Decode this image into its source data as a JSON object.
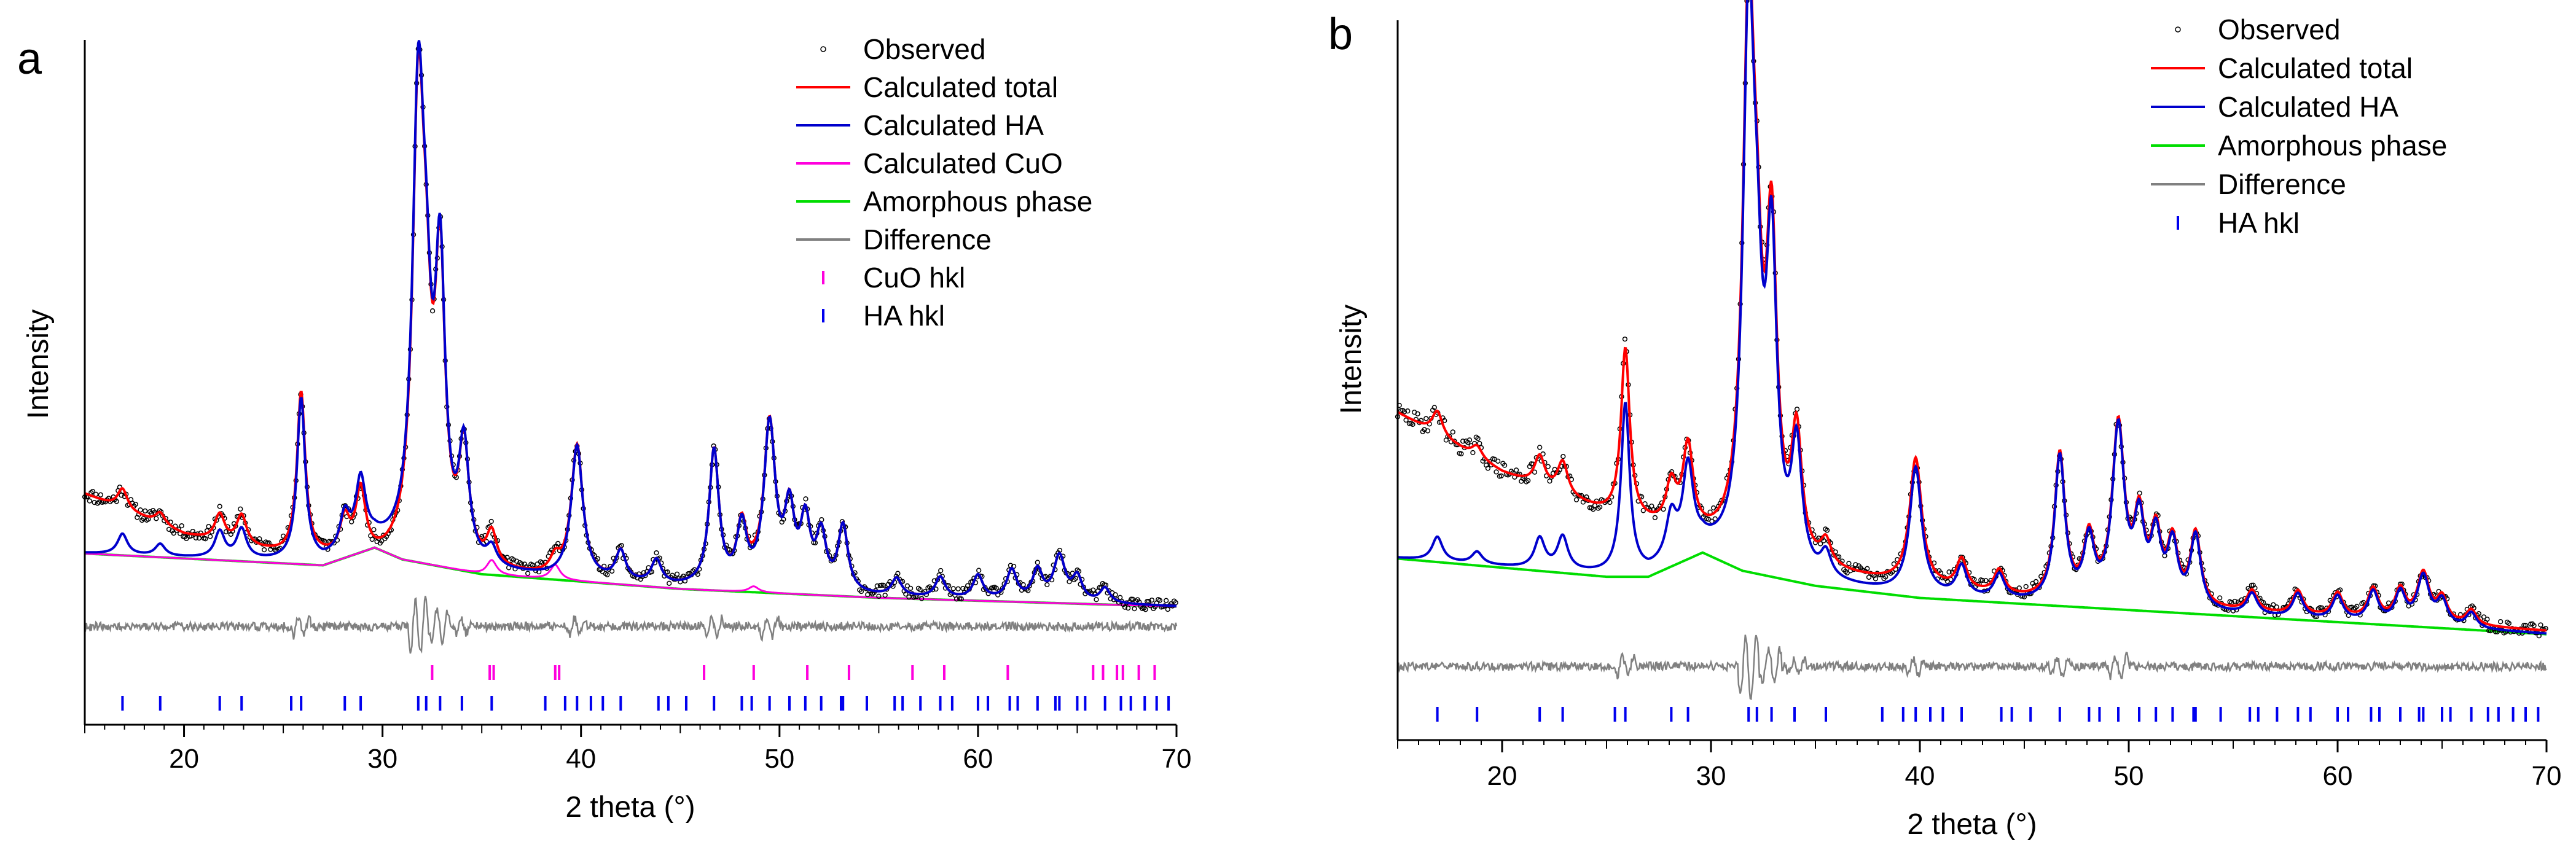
{
  "colors": {
    "observed": "#000000",
    "calculated_total": "#ff0000",
    "calculated_ha": "#0000cc",
    "calculated_cuo": "#ff00dd",
    "amorphous": "#00dd00",
    "difference": "#808080",
    "cuo_hkl": "#ff00dd",
    "ha_hkl": "#0000ee"
  },
  "chart_data": [
    {
      "type": "line",
      "panel_label": "a",
      "title": "",
      "xlabel": "2 theta (°)",
      "ylabel": "Intensity",
      "xlim": [
        15,
        70
      ],
      "ylim": [
        -0.32,
        2.0
      ],
      "xticks": [
        20,
        30,
        40,
        50,
        60,
        70
      ],
      "grid": false,
      "legend": {
        "position": "top-right",
        "entries": [
          {
            "label": "Observed",
            "series": "observed",
            "symbol": "circle"
          },
          {
            "label": "Calculated total",
            "series": "calculated_total",
            "symbol": "line"
          },
          {
            "label": "Calculated HA",
            "series": "calculated_ha",
            "symbol": "line"
          },
          {
            "label": "Calculated CuO",
            "series": "calculated_cuo",
            "symbol": "line"
          },
          {
            "label": "Amorphous phase",
            "series": "amorphous",
            "symbol": "line"
          },
          {
            "label": "Difference",
            "series": "difference",
            "symbol": "line"
          },
          {
            "label": "CuO hkl",
            "series": "cuo_hkl",
            "symbol": "tick"
          },
          {
            "label": "HA hkl",
            "series": "ha_hkl",
            "symbol": "tick"
          }
        ]
      },
      "amorphous": {
        "points": [
          [
            15,
            0.26
          ],
          [
            27,
            0.22
          ],
          [
            29.6,
            0.28
          ],
          [
            31,
            0.24
          ],
          [
            35,
            0.19
          ],
          [
            45,
            0.14
          ],
          [
            55,
            0.11
          ],
          [
            70,
            0.08
          ]
        ]
      },
      "background": {
        "points": [
          [
            15,
            0.46
          ],
          [
            20,
            0.32
          ],
          [
            25,
            0.25
          ],
          [
            30,
            0.22
          ],
          [
            35,
            0.19
          ],
          [
            45,
            0.14
          ],
          [
            55,
            0.11
          ],
          [
            70,
            0.08
          ]
        ]
      },
      "ha_peaks": [
        {
          "pos": 16.9,
          "h": 0.07,
          "w": 0.3
        },
        {
          "pos": 18.8,
          "h": 0.04,
          "w": 0.3
        },
        {
          "pos": 21.8,
          "h": 0.09,
          "w": 0.3
        },
        {
          "pos": 22.9,
          "h": 0.1,
          "w": 0.3
        },
        {
          "pos": 25.9,
          "h": 0.55,
          "w": 0.25
        },
        {
          "pos": 28.1,
          "h": 0.12,
          "w": 0.3
        },
        {
          "pos": 28.9,
          "h": 0.22,
          "w": 0.3
        },
        {
          "pos": 31.8,
          "h": 1.5,
          "w": 0.35
        },
        {
          "pos": 32.2,
          "h": 0.5,
          "w": 0.3
        },
        {
          "pos": 32.9,
          "h": 0.95,
          "w": 0.3
        },
        {
          "pos": 34.1,
          "h": 0.38,
          "w": 0.3
        },
        {
          "pos": 35.5,
          "h": 0.06,
          "w": 0.3
        },
        {
          "pos": 39.8,
          "h": 0.45,
          "w": 0.35
        },
        {
          "pos": 42.0,
          "h": 0.1,
          "w": 0.3
        },
        {
          "pos": 43.8,
          "h": 0.08,
          "w": 0.3
        },
        {
          "pos": 46.7,
          "h": 0.46,
          "w": 0.3
        },
        {
          "pos": 48.1,
          "h": 0.2,
          "w": 0.3
        },
        {
          "pos": 49.5,
          "h": 0.55,
          "w": 0.35
        },
        {
          "pos": 50.5,
          "h": 0.25,
          "w": 0.3
        },
        {
          "pos": 51.3,
          "h": 0.22,
          "w": 0.3
        },
        {
          "pos": 52.1,
          "h": 0.18,
          "w": 0.3
        },
        {
          "pos": 53.2,
          "h": 0.22,
          "w": 0.3
        },
        {
          "pos": 55.9,
          "h": 0.06,
          "w": 0.3
        },
        {
          "pos": 58.1,
          "h": 0.07,
          "w": 0.3
        },
        {
          "pos": 60.0,
          "h": 0.08,
          "w": 0.3
        },
        {
          "pos": 61.7,
          "h": 0.1,
          "w": 0.3
        },
        {
          "pos": 63.0,
          "h": 0.1,
          "w": 0.3
        },
        {
          "pos": 64.1,
          "h": 0.15,
          "w": 0.35
        },
        {
          "pos": 65.0,
          "h": 0.08,
          "w": 0.3
        },
        {
          "pos": 66.4,
          "h": 0.05,
          "w": 0.3
        }
      ],
      "cuo_peaks": [
        {
          "pos": 35.5,
          "h": 0.05,
          "w": 0.3
        },
        {
          "pos": 38.7,
          "h": 0.05,
          "w": 0.3
        },
        {
          "pos": 48.7,
          "h": 0.02,
          "w": 0.3
        }
      ],
      "cuo_hkl": [
        32.5,
        35.4,
        35.6,
        38.7,
        38.9,
        46.2,
        48.7,
        51.4,
        53.5,
        56.7,
        58.3,
        61.5,
        65.8,
        66.3,
        67.0,
        67.3,
        68.1,
        68.9
      ],
      "ha_hkl": [
        16.9,
        18.8,
        21.8,
        22.9,
        25.4,
        25.9,
        28.1,
        28.9,
        31.8,
        32.2,
        32.9,
        34.0,
        35.5,
        38.2,
        39.2,
        39.8,
        40.5,
        41.1,
        42.0,
        43.9,
        44.4,
        45.3,
        46.7,
        48.1,
        48.6,
        49.5,
        50.5,
        51.3,
        52.1,
        53.1,
        53.2,
        54.4,
        55.8,
        56.2,
        57.1,
        58.1,
        58.7,
        60.0,
        60.5,
        61.6,
        62.0,
        63.0,
        63.9,
        64.1,
        65.0,
        65.4,
        66.4,
        67.2,
        67.7,
        68.4,
        69.0,
        69.6
      ]
    },
    {
      "type": "line",
      "panel_label": "b",
      "title": "",
      "xlabel": "2 theta (°)",
      "ylabel": "Intensity",
      "xlim": [
        15,
        70
      ],
      "ylim": [
        -0.3,
        2.08
      ],
      "xticks": [
        20,
        30,
        40,
        50,
        60,
        70
      ],
      "grid": false,
      "legend": {
        "position": "top-right",
        "entries": [
          {
            "label": "Observed",
            "series": "observed",
            "symbol": "circle"
          },
          {
            "label": "Calculated total",
            "series": "calculated_total",
            "symbol": "line"
          },
          {
            "label": "Calculated HA",
            "series": "calculated_ha",
            "symbol": "line"
          },
          {
            "label": "Amorphous phase",
            "series": "amorphous",
            "symbol": "line"
          },
          {
            "label": "Difference",
            "series": "difference",
            "symbol": "line"
          },
          {
            "label": "HA hkl",
            "series": "ha_hkl",
            "symbol": "tick"
          }
        ]
      },
      "amorphous": {
        "points": [
          [
            15,
            0.3
          ],
          [
            20,
            0.27
          ],
          [
            25,
            0.24
          ],
          [
            27,
            0.24
          ],
          [
            29.6,
            0.32
          ],
          [
            31.5,
            0.26
          ],
          [
            35,
            0.21
          ],
          [
            40,
            0.17
          ],
          [
            45,
            0.15
          ],
          [
            50,
            0.13
          ],
          [
            55,
            0.11
          ],
          [
            60,
            0.09
          ],
          [
            65,
            0.07
          ],
          [
            70,
            0.05
          ]
        ]
      },
      "background": {
        "points": [
          [
            15,
            0.78
          ],
          [
            20,
            0.58
          ],
          [
            25,
            0.44
          ],
          [
            30,
            0.34
          ],
          [
            35,
            0.25
          ],
          [
            40,
            0.2
          ],
          [
            45,
            0.16
          ],
          [
            50,
            0.14
          ],
          [
            55,
            0.12
          ],
          [
            60,
            0.1
          ],
          [
            65,
            0.08
          ],
          [
            70,
            0.06
          ]
        ]
      },
      "ha_peaks": [
        {
          "pos": 16.9,
          "h": 0.08,
          "w": 0.3
        },
        {
          "pos": 18.8,
          "h": 0.04,
          "w": 0.3
        },
        {
          "pos": 21.8,
          "h": 0.1,
          "w": 0.3
        },
        {
          "pos": 22.9,
          "h": 0.11,
          "w": 0.3
        },
        {
          "pos": 25.9,
          "h": 0.56,
          "w": 0.25
        },
        {
          "pos": 28.1,
          "h": 0.14,
          "w": 0.3
        },
        {
          "pos": 28.9,
          "h": 0.28,
          "w": 0.3
        },
        {
          "pos": 31.8,
          "h": 1.72,
          "w": 0.33
        },
        {
          "pos": 32.2,
          "h": 0.55,
          "w": 0.3
        },
        {
          "pos": 32.9,
          "h": 1.0,
          "w": 0.3
        },
        {
          "pos": 34.1,
          "h": 0.4,
          "w": 0.3
        },
        {
          "pos": 35.5,
          "h": 0.08,
          "w": 0.3
        },
        {
          "pos": 39.8,
          "h": 0.42,
          "w": 0.35
        },
        {
          "pos": 42.0,
          "h": 0.1,
          "w": 0.3
        },
        {
          "pos": 43.8,
          "h": 0.08,
          "w": 0.3
        },
        {
          "pos": 46.7,
          "h": 0.48,
          "w": 0.3
        },
        {
          "pos": 48.1,
          "h": 0.2,
          "w": 0.3
        },
        {
          "pos": 49.5,
          "h": 0.58,
          "w": 0.35
        },
        {
          "pos": 50.5,
          "h": 0.26,
          "w": 0.3
        },
        {
          "pos": 51.3,
          "h": 0.22,
          "w": 0.3
        },
        {
          "pos": 52.1,
          "h": 0.2,
          "w": 0.3
        },
        {
          "pos": 53.2,
          "h": 0.24,
          "w": 0.3
        },
        {
          "pos": 55.9,
          "h": 0.07,
          "w": 0.3
        },
        {
          "pos": 58.1,
          "h": 0.08,
          "w": 0.3
        },
        {
          "pos": 60.0,
          "h": 0.08,
          "w": 0.3
        },
        {
          "pos": 61.7,
          "h": 0.1,
          "w": 0.3
        },
        {
          "pos": 63.0,
          "h": 0.1,
          "w": 0.3
        },
        {
          "pos": 64.1,
          "h": 0.16,
          "w": 0.35
        },
        {
          "pos": 65.0,
          "h": 0.08,
          "w": 0.3
        },
        {
          "pos": 66.4,
          "h": 0.05,
          "w": 0.3
        }
      ],
      "cuo_peaks": [],
      "cuo_hkl": [],
      "ha_hkl": [
        16.9,
        18.8,
        21.8,
        22.9,
        25.4,
        25.9,
        28.1,
        28.9,
        31.8,
        32.2,
        32.9,
        34.0,
        35.5,
        38.2,
        39.2,
        39.8,
        40.5,
        41.1,
        42.0,
        43.9,
        44.4,
        45.3,
        46.7,
        48.1,
        48.6,
        49.5,
        50.5,
        51.3,
        52.1,
        53.1,
        53.2,
        54.4,
        55.8,
        56.2,
        57.1,
        58.1,
        58.7,
        60.0,
        60.5,
        61.6,
        62.0,
        63.0,
        63.9,
        64.1,
        65.0,
        65.4,
        66.4,
        67.2,
        67.7,
        68.4,
        69.0,
        69.6
      ]
    }
  ]
}
